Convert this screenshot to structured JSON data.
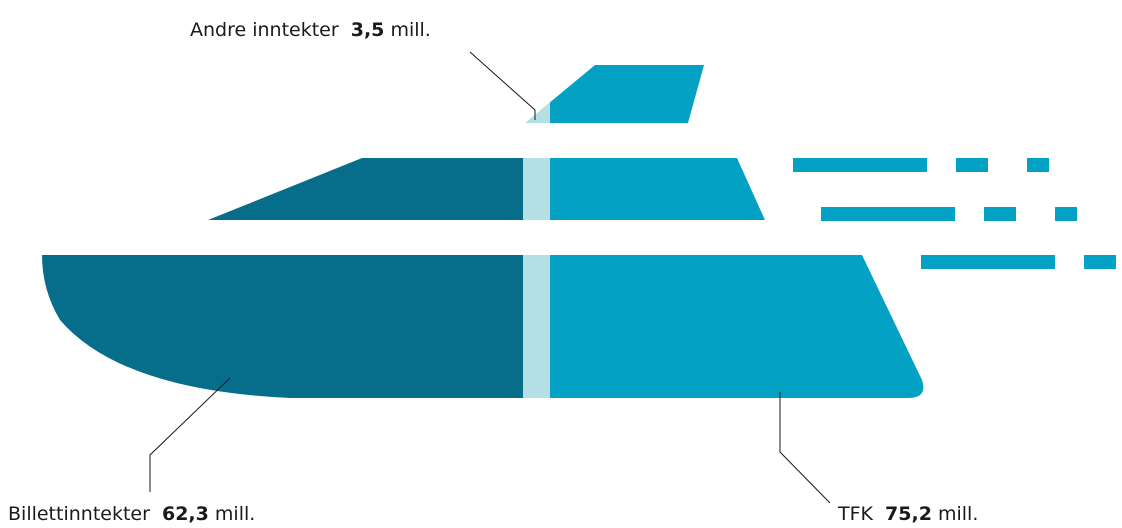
{
  "chart_data": {
    "type": "stacked-bar",
    "categories": [
      "Billettinntekter",
      "Andre inntekter",
      "TFK"
    ],
    "values": [
      62.3,
      3.5,
      75.2
    ],
    "value_labels": [
      "62,3",
      "3,5",
      "75,2"
    ],
    "unit": "mill.",
    "colors": [
      "#066e8a",
      "#b3dfe5",
      "#03a1c4"
    ]
  }
}
